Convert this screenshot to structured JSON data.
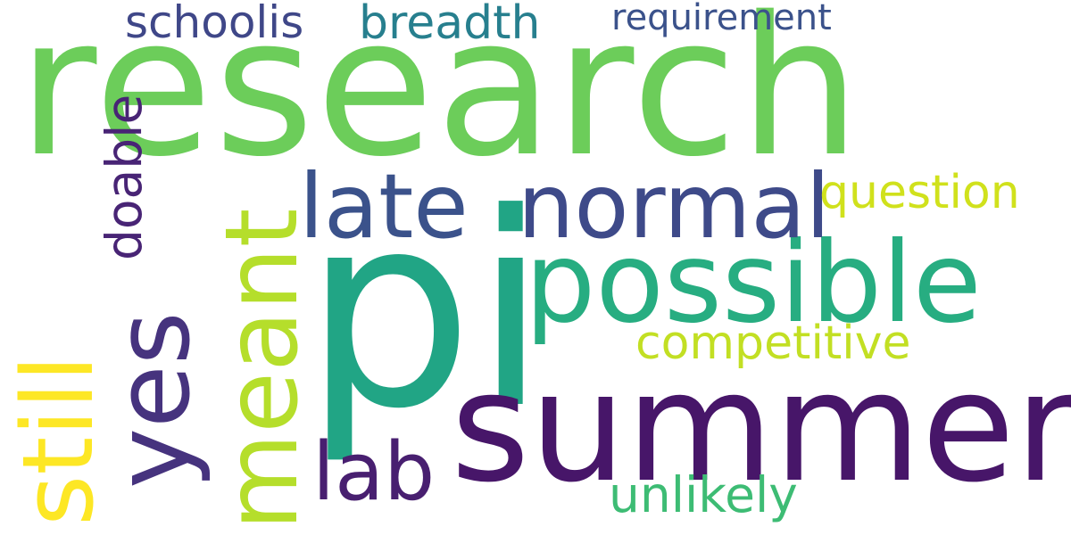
{
  "words": {
    "research": {
      "text": "research",
      "color": "#6ccd5a"
    },
    "pi": {
      "text": "pi",
      "color": "#21a585"
    },
    "summer": {
      "text": "summer",
      "color": "#471669"
    },
    "possible": {
      "text": "possible",
      "color": "#27ad81"
    },
    "late": {
      "text": "late",
      "color": "#3b528b"
    },
    "normal": {
      "text": "normal",
      "color": "#3e4a89"
    },
    "yes": {
      "text": "yes",
      "color": "#46337e"
    },
    "meant": {
      "text": "meant",
      "color": "#b5de2b"
    },
    "still": {
      "text": "still",
      "color": "#fde725"
    },
    "lab": {
      "text": "lab",
      "color": "#481f70"
    },
    "competitive": {
      "text": "competitive",
      "color": "#c2df23"
    },
    "question": {
      "text": "question",
      "color": "#d0e11c"
    },
    "unlikely": {
      "text": "unlikely",
      "color": "#3dbc74"
    },
    "doable": {
      "text": "doable",
      "color": "#482475"
    },
    "schoolis": {
      "text": "schoolis",
      "color": "#3f4788"
    },
    "breadth": {
      "text": "breadth",
      "color": "#277f8e"
    },
    "requirement": {
      "text": "requirement",
      "color": "#3b528b"
    }
  }
}
